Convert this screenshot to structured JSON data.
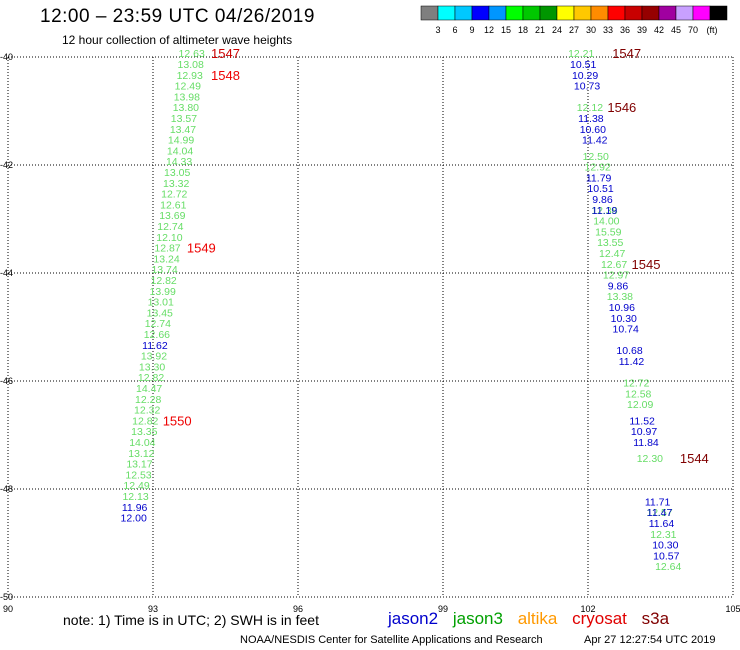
{
  "title": "12:00 – 23:59 UTC 04/26/2019",
  "subtitle": "12 hour collection of altimeter wave heights",
  "color_scale": {
    "colors": [
      "#7f7f7f",
      "#00ffff",
      "#00c8ff",
      "#0000ff",
      "#0096ff",
      "#00ff00",
      "#00c800",
      "#009600",
      "#ffff00",
      "#ffc800",
      "#ff8c00",
      "#ff0000",
      "#c80000",
      "#960000",
      "#a000a0",
      "#c8a0ff",
      "#ff00ff",
      "#000000"
    ],
    "labels": [
      "3",
      "6",
      "9",
      "12",
      "15",
      "18",
      "21",
      "24",
      "27",
      "30",
      "33",
      "36",
      "39",
      "42",
      "45",
      "70",
      "(ft)"
    ]
  },
  "note": "note: 1) Time is in UTC; 2) SWH is in feet",
  "satellites": [
    {
      "name": "jason2",
      "color": "#0000cc"
    },
    {
      "name": "jason3",
      "color": "#00a000"
    },
    {
      "name": "altika",
      "color": "#ff9900"
    },
    {
      "name": "cryosat",
      "color": "#e00000"
    },
    {
      "name": "s3a",
      "color": "#800000"
    }
  ],
  "credit": "NOAA/NESDIS Center for Satellite Applications and Research",
  "timestamp": "Apr 27 12:27:54 UTC 2019",
  "chart_data": {
    "type": "scatter",
    "title": "12 hour collection of altimeter wave heights",
    "xlim": [
      90,
      105
    ],
    "ylim": [
      -50,
      -40
    ],
    "x_ticks": [
      "90",
      "93",
      "96",
      "99",
      "102",
      "105"
    ],
    "y_ticks": [
      "-40",
      "-42",
      "-44",
      "-46",
      "-48",
      "-50"
    ],
    "grid": true,
    "series": [
      {
        "name": "jason3",
        "color": "#66dd66",
        "points": [
          {
            "x": 93.8,
            "y": -39.93,
            "v": "12.63"
          },
          {
            "x": 93.78,
            "y": -40.13,
            "v": "13.08"
          },
          {
            "x": 93.76,
            "y": -40.33,
            "v": "12.93"
          },
          {
            "x": 93.72,
            "y": -40.53,
            "v": "12.49"
          },
          {
            "x": 93.7,
            "y": -40.73,
            "v": "13.98"
          },
          {
            "x": 93.68,
            "y": -40.93,
            "v": "13.80"
          },
          {
            "x": 93.64,
            "y": -41.13,
            "v": "13.57"
          },
          {
            "x": 93.62,
            "y": -41.33,
            "v": "13.47"
          },
          {
            "x": 93.58,
            "y": -41.53,
            "v": "14.99"
          },
          {
            "x": 93.56,
            "y": -41.73,
            "v": "14.04"
          },
          {
            "x": 93.54,
            "y": -41.93,
            "v": "14.33"
          },
          {
            "x": 93.5,
            "y": -42.13,
            "v": "13.05"
          },
          {
            "x": 93.48,
            "y": -42.33,
            "v": "13.32"
          },
          {
            "x": 93.44,
            "y": -42.53,
            "v": "12.72"
          },
          {
            "x": 93.42,
            "y": -42.73,
            "v": "12.61"
          },
          {
            "x": 93.4,
            "y": -42.93,
            "v": "13.69"
          },
          {
            "x": 93.36,
            "y": -43.13,
            "v": "12.74"
          },
          {
            "x": 93.34,
            "y": -43.33,
            "v": "12.10"
          },
          {
            "x": 93.3,
            "y": -43.53,
            "v": "12.87"
          },
          {
            "x": 93.28,
            "y": -43.73,
            "v": "13.24"
          },
          {
            "x": 93.24,
            "y": -43.93,
            "v": "13.74"
          },
          {
            "x": 93.22,
            "y": -44.13,
            "v": "12.82"
          },
          {
            "x": 93.2,
            "y": -44.33,
            "v": "13.99"
          },
          {
            "x": 93.16,
            "y": -44.53,
            "v": "13.01"
          },
          {
            "x": 93.14,
            "y": -44.73,
            "v": "13.45"
          },
          {
            "x": 93.1,
            "y": -44.93,
            "v": "12.74"
          },
          {
            "x": 93.08,
            "y": -45.13,
            "v": "12.66"
          },
          {
            "x": 93.02,
            "y": -45.53,
            "v": "13.92"
          },
          {
            "x": 92.98,
            "y": -45.73,
            "v": "13.30"
          },
          {
            "x": 92.96,
            "y": -45.93,
            "v": "12.82"
          },
          {
            "x": 92.92,
            "y": -46.13,
            "v": "14.47"
          },
          {
            "x": 92.9,
            "y": -46.33,
            "v": "12.28"
          },
          {
            "x": 92.88,
            "y": -46.53,
            "v": "12.32"
          },
          {
            "x": 92.84,
            "y": -46.73,
            "v": "12.82"
          },
          {
            "x": 92.82,
            "y": -46.93,
            "v": "13.35"
          },
          {
            "x": 92.78,
            "y": -47.13,
            "v": "14.04"
          },
          {
            "x": 92.76,
            "y": -47.33,
            "v": "13.12"
          },
          {
            "x": 92.72,
            "y": -47.53,
            "v": "13.17"
          },
          {
            "x": 92.7,
            "y": -47.73,
            "v": "12.53"
          },
          {
            "x": 92.66,
            "y": -47.93,
            "v": "12.49"
          },
          {
            "x": 92.64,
            "y": -48.13,
            "v": "12.13"
          },
          {
            "x": 101.86,
            "y": -39.93,
            "v": "12.21"
          },
          {
            "x": 102.04,
            "y": -40.93,
            "v": "12.12"
          },
          {
            "x": 102.16,
            "y": -41.83,
            "v": "12.50"
          },
          {
            "x": 102.2,
            "y": -42.03,
            "v": "12.92"
          },
          {
            "x": 102.34,
            "y": -42.83,
            "v": "12.38"
          },
          {
            "x": 102.38,
            "y": -43.03,
            "v": "14.00"
          },
          {
            "x": 102.42,
            "y": -43.23,
            "v": "15.59"
          },
          {
            "x": 102.46,
            "y": -43.43,
            "v": "13.55"
          },
          {
            "x": 102.5,
            "y": -43.63,
            "v": "12.47"
          },
          {
            "x": 102.54,
            "y": -43.83,
            "v": "12.67"
          },
          {
            "x": 102.58,
            "y": -44.03,
            "v": "12.97"
          },
          {
            "x": 102.66,
            "y": -44.43,
            "v": "13.38"
          },
          {
            "x": 103.0,
            "y": -46.03,
            "v": "12.72"
          },
          {
            "x": 103.04,
            "y": -46.23,
            "v": "12.58"
          },
          {
            "x": 103.08,
            "y": -46.43,
            "v": "12.09"
          },
          {
            "x": 103.28,
            "y": -47.43,
            "v": "12.30"
          },
          {
            "x": 103.48,
            "y": -48.43,
            "v": "12.57"
          },
          {
            "x": 103.56,
            "y": -48.83,
            "v": "12.31"
          },
          {
            "x": 103.66,
            "y": -49.43,
            "v": "12.64"
          }
        ]
      },
      {
        "name": "jason2",
        "color": "#0000cc",
        "points": [
          {
            "x": 93.04,
            "y": -45.33,
            "v": "11.62"
          },
          {
            "x": 92.62,
            "y": -48.33,
            "v": "11.96"
          },
          {
            "x": 92.6,
            "y": -48.53,
            "v": "12.00"
          },
          {
            "x": 101.9,
            "y": -40.13,
            "v": "10.51"
          },
          {
            "x": 101.94,
            "y": -40.33,
            "v": "10.29"
          },
          {
            "x": 101.98,
            "y": -40.53,
            "v": "10.73"
          },
          {
            "x": 102.06,
            "y": -41.13,
            "v": "11.38"
          },
          {
            "x": 102.1,
            "y": -41.33,
            "v": "10.60"
          },
          {
            "x": 102.14,
            "y": -41.53,
            "v": "11.42"
          },
          {
            "x": 102.22,
            "y": -42.23,
            "v": "11.79"
          },
          {
            "x": 102.26,
            "y": -42.43,
            "v": "10.51"
          },
          {
            "x": 102.3,
            "y": -42.63,
            "v": "9.86"
          },
          {
            "x": 102.34,
            "y": -42.83,
            "v": "11.19"
          },
          {
            "x": 102.62,
            "y": -44.23,
            "v": "9.86"
          },
          {
            "x": 102.7,
            "y": -44.63,
            "v": "10.96"
          },
          {
            "x": 102.74,
            "y": -44.83,
            "v": "10.30"
          },
          {
            "x": 102.78,
            "y": -45.03,
            "v": "10.74"
          },
          {
            "x": 102.86,
            "y": -45.43,
            "v": "10.68"
          },
          {
            "x": 102.9,
            "y": -45.63,
            "v": "11.42"
          },
          {
            "x": 103.12,
            "y": -46.73,
            "v": "11.52"
          },
          {
            "x": 103.16,
            "y": -46.93,
            "v": "10.97"
          },
          {
            "x": 103.2,
            "y": -47.13,
            "v": "11.84"
          },
          {
            "x": 103.44,
            "y": -48.23,
            "v": "11.71"
          },
          {
            "x": 103.48,
            "y": -48.43,
            "v": "11.47"
          },
          {
            "x": 103.52,
            "y": -48.63,
            "v": "11.64"
          },
          {
            "x": 103.6,
            "y": -49.03,
            "v": "10.30"
          },
          {
            "x": 103.62,
            "y": -49.23,
            "v": "10.57"
          }
        ]
      }
    ],
    "passes": [
      {
        "label": "1547",
        "x": 94.5,
        "y": -39.93,
        "color": "#cc0000"
      },
      {
        "label": "1548",
        "x": 94.5,
        "y": -40.33,
        "color": "#ee0000"
      },
      {
        "label": "1549",
        "x": 94.0,
        "y": -43.53,
        "color": "#ee0000"
      },
      {
        "label": "1550",
        "x": 93.5,
        "y": -46.73,
        "color": "#ee0000"
      },
      {
        "label": "1547",
        "x": 102.8,
        "y": -39.93,
        "color": "#800000"
      },
      {
        "label": "1546",
        "x": 102.7,
        "y": -40.93,
        "color": "#800000"
      },
      {
        "label": "1545",
        "x": 103.2,
        "y": -43.83,
        "color": "#800000"
      },
      {
        "label": "1544",
        "x": 104.2,
        "y": -47.43,
        "color": "#800000"
      }
    ]
  }
}
